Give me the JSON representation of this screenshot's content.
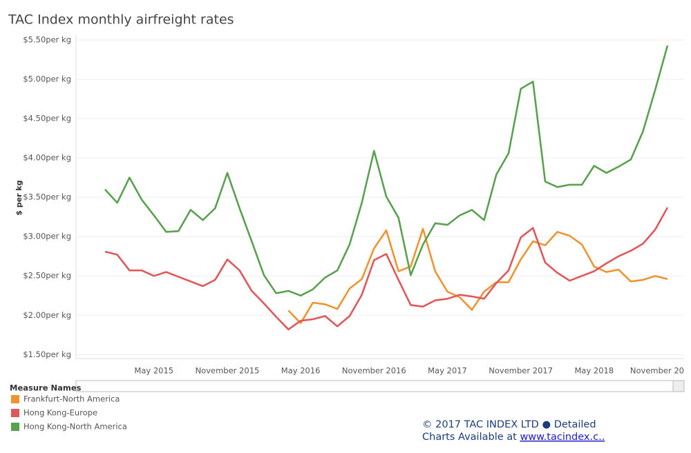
{
  "chart_data": {
    "type": "line",
    "title": "TAC Index monthly airfreight rates",
    "y_label": "$ per kg",
    "categories": [
      null,
      null,
      null,
      null,
      "May 2015",
      null,
      null,
      null,
      null,
      null,
      "November 2015",
      null,
      null,
      null,
      null,
      null,
      "May 2016",
      null,
      null,
      null,
      null,
      null,
      "November 2016",
      null,
      null,
      null,
      null,
      null,
      "May 2017",
      null,
      null,
      null,
      null,
      null,
      "November 2017",
      null,
      null,
      null,
      null,
      null,
      "May 2018",
      null,
      null,
      null,
      null,
      null,
      "November 20"
    ],
    "series": [
      {
        "name": "Frankfurt-North America",
        "color": "#f0932f",
        "values": [
          null,
          null,
          null,
          null,
          null,
          null,
          null,
          null,
          null,
          null,
          null,
          null,
          null,
          null,
          null,
          2.06,
          1.9,
          2.16,
          2.14,
          2.08,
          2.34,
          2.46,
          2.85,
          3.08,
          2.56,
          2.62,
          3.1,
          2.56,
          2.3,
          2.23,
          2.07,
          2.3,
          2.42,
          2.42,
          2.71,
          2.94,
          2.89,
          3.06,
          3.01,
          2.9,
          2.62,
          2.55,
          2.58,
          2.43,
          2.45,
          2.5,
          2.46
        ]
      },
      {
        "name": "Hong Kong-Europe",
        "color": "#e15759",
        "values": [
          2.81,
          2.77,
          2.57,
          2.57,
          2.5,
          2.55,
          2.49,
          2.43,
          2.37,
          2.45,
          2.71,
          2.57,
          2.31,
          2.15,
          1.98,
          1.82,
          1.93,
          1.95,
          1.99,
          1.86,
          1.99,
          2.26,
          2.7,
          2.78,
          2.45,
          2.13,
          2.11,
          2.19,
          2.21,
          2.26,
          2.24,
          2.21,
          2.41,
          2.57,
          2.99,
          3.11,
          2.67,
          2.54,
          2.44,
          2.5,
          2.56,
          2.66,
          2.75,
          2.82,
          2.91,
          3.09,
          3.37
        ]
      },
      {
        "name": "Hong Kong-North America",
        "color": "#59a14f",
        "values": [
          3.6,
          3.43,
          3.75,
          3.47,
          3.27,
          3.06,
          3.07,
          3.34,
          3.21,
          3.36,
          3.81,
          3.36,
          2.94,
          2.51,
          2.28,
          2.31,
          2.25,
          2.33,
          2.48,
          2.57,
          2.9,
          3.43,
          4.09,
          3.51,
          3.24,
          2.51,
          2.9,
          3.17,
          3.15,
          3.27,
          3.34,
          3.21,
          3.79,
          4.06,
          4.88,
          4.97,
          3.7,
          3.63,
          3.66,
          3.66,
          3.9,
          3.81,
          3.89,
          3.98,
          4.34,
          4.87,
          5.43
        ]
      }
    ],
    "ylim": [
      1.45,
      5.57
    ],
    "yticks": [
      {
        "value": 1.5,
        "label": "$1.50per kg"
      },
      {
        "value": 2.0,
        "label": "$2.00per kg"
      },
      {
        "value": 2.5,
        "label": "$2.50per kg"
      },
      {
        "value": 3.0,
        "label": "$3.00per kg"
      },
      {
        "value": 3.5,
        "label": "$3.50per kg"
      },
      {
        "value": 4.0,
        "label": "$4.00per kg"
      },
      {
        "value": 4.5,
        "label": "$4.50per kg"
      },
      {
        "value": 5.0,
        "label": "$5.00per kg"
      },
      {
        "value": 5.5,
        "label": "$5.50per kg"
      }
    ],
    "grid": true,
    "legend_title": "Measure Names",
    "legend_position": "bottom-left",
    "footer": {
      "line1": "© 2017 TAC INDEX LTD ● Detailed",
      "line2": "Charts Available at",
      "link": "www.tacindex.c.."
    }
  }
}
